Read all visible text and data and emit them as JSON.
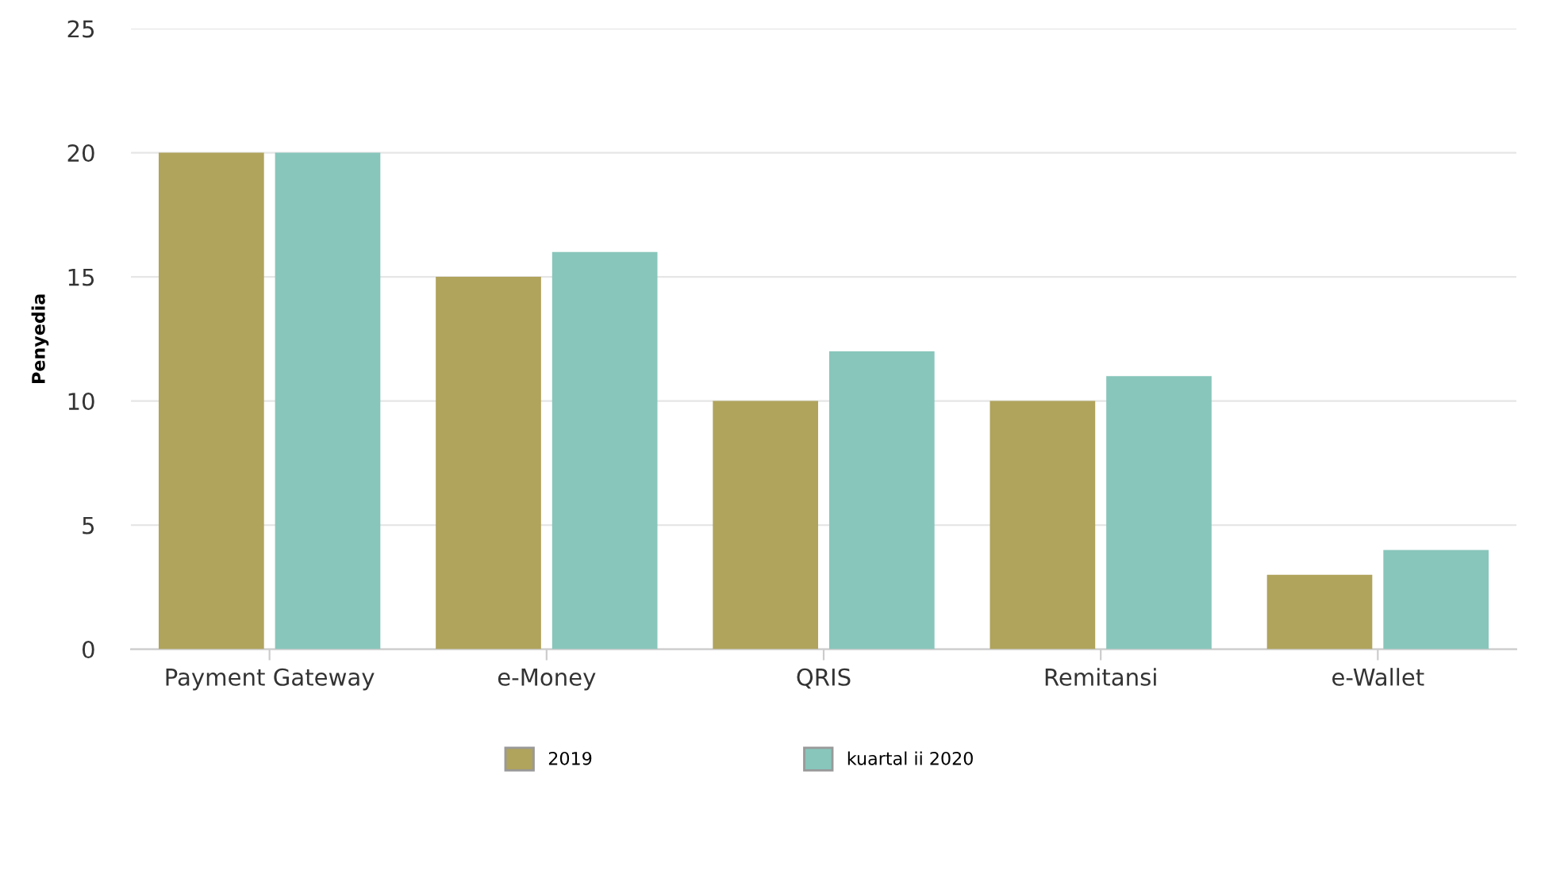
{
  "chart_data": {
    "type": "bar",
    "ylabel": "Penyedia",
    "categories": [
      "Payment Gateway",
      "e-Money",
      "QRIS",
      "Remitansi",
      "e-Wallet"
    ],
    "series": [
      {
        "name": "2019",
        "color": "#b0a35c",
        "values": [
          20,
          15,
          10,
          10,
          3
        ]
      },
      {
        "name": "kuartal ii 2020",
        "color": "#88c6bb",
        "values": [
          20,
          16,
          12,
          11,
          4
        ]
      }
    ],
    "ylim": [
      0,
      25
    ],
    "yticks": [
      0,
      5,
      10,
      15,
      20,
      25
    ],
    "grid": "y",
    "legend": "bottom"
  }
}
